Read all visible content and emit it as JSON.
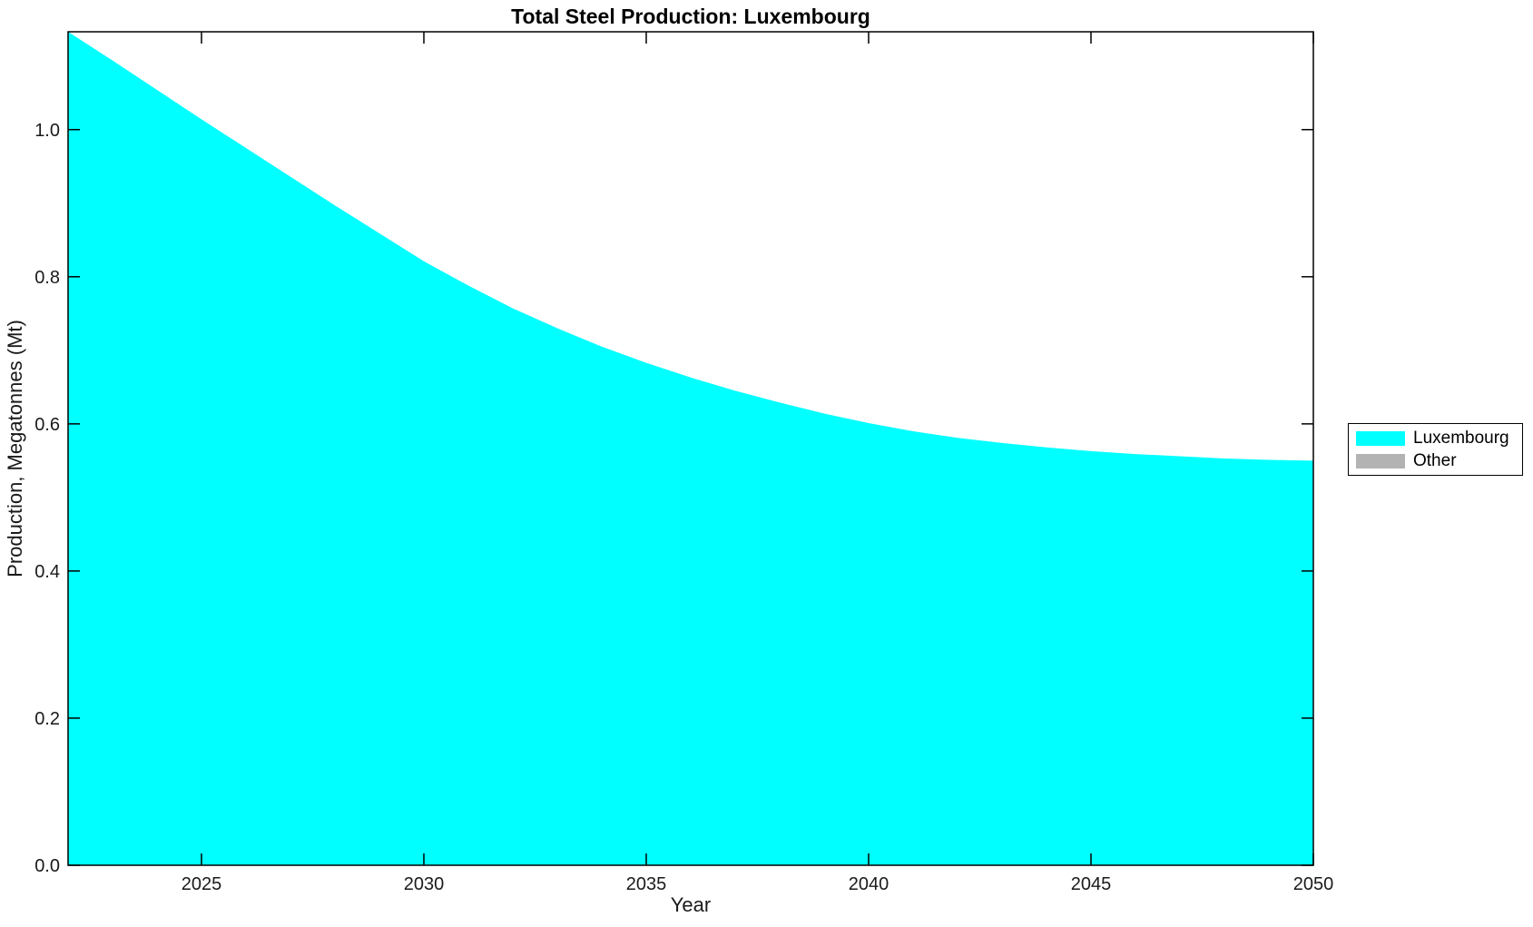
{
  "chart_data": {
    "type": "area",
    "title": "Total Steel Production: Luxembourg",
    "xlabel": "Year",
    "ylabel": "Production, Megatonnes (Mt)",
    "x": [
      2022,
      2023,
      2024,
      2025,
      2026,
      2027,
      2028,
      2029,
      2030,
      2031,
      2032,
      2033,
      2034,
      2035,
      2036,
      2037,
      2038,
      2039,
      2040,
      2041,
      2042,
      2043,
      2044,
      2045,
      2046,
      2047,
      2048,
      2049,
      2050
    ],
    "series": [
      {
        "name": "Luxembourg",
        "color": "#00FFFF",
        "values": [
          1.133,
          1.094,
          1.054,
          1.014,
          0.975,
          0.936,
          0.897,
          0.859,
          0.821,
          0.788,
          0.757,
          0.73,
          0.705,
          0.683,
          0.663,
          0.645,
          0.629,
          0.614,
          0.601,
          0.59,
          0.581,
          0.574,
          0.568,
          0.563,
          0.559,
          0.556,
          0.553,
          0.551,
          0.55
        ]
      },
      {
        "name": "Other",
        "color": "#B3B3B3",
        "values": [
          0,
          0,
          0,
          0,
          0,
          0,
          0,
          0,
          0,
          0,
          0,
          0,
          0,
          0,
          0,
          0,
          0,
          0,
          0,
          0,
          0,
          0,
          0,
          0,
          0,
          0,
          0,
          0,
          0
        ]
      }
    ],
    "xlim": [
      2022,
      2050
    ],
    "ylim": [
      0,
      1.133
    ],
    "xticks": [
      2025,
      2030,
      2035,
      2040,
      2045,
      2050
    ],
    "xtick_labels": [
      "2025",
      "2030",
      "2035",
      "2040",
      "2045",
      "2050"
    ],
    "yticks": [
      0,
      0.2,
      0.4,
      0.6,
      0.8,
      1.0
    ],
    "ytick_labels": [
      "0.0",
      "0.2",
      "0.4",
      "0.6",
      "0.8",
      "1.0"
    ],
    "grid": false,
    "legend_position": "right-outside",
    "axis_color": "#000000",
    "tick_label_color": "#1a1a1a"
  }
}
